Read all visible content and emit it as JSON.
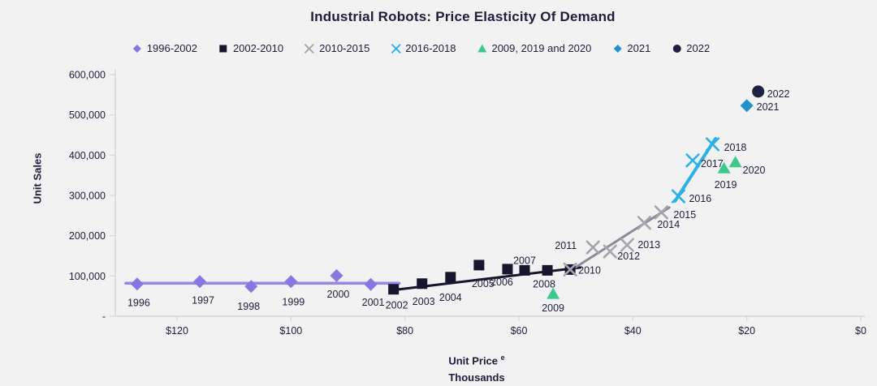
{
  "title": "Industrial Robots: Price Elasticity Of Demand",
  "colors": {
    "background": "#f2f2f2",
    "text": "#1e1e3c",
    "axis_line": "#d6d6db"
  },
  "chart_data": {
    "type": "scatter",
    "title": "Industrial Robots: Price Elasticity Of Demand",
    "xlabel": "Unit Price",
    "xlabel_sup": "e",
    "xlabel_line2": "Thousands",
    "ylabel": "Unit Sales",
    "legend_position": "top-center",
    "grid": false,
    "x_axis": {
      "reversed": true,
      "min": 0,
      "max": 120,
      "tick_step": 20,
      "tick_labels": [
        "$120",
        "$100",
        "$80",
        "$60",
        "$40",
        "$20",
        "$0"
      ]
    },
    "y_axis": {
      "min": 0,
      "max": 600000,
      "tick_step": 100000,
      "tick_labels": [
        "-",
        "100,000",
        "200,000",
        "300,000",
        "400,000",
        "500,000",
        "600,000"
      ]
    },
    "series": [
      {
        "name": "1996-2002",
        "marker": "diamond",
        "color": "#8677e2",
        "points": [
          {
            "year": "1996",
            "price": 127,
            "sales": 80000,
            "label": [
              2,
              27,
              "middle"
            ]
          },
          {
            "year": "1997",
            "price": 116,
            "sales": 86000,
            "label": [
              4,
              27,
              "middle"
            ]
          },
          {
            "year": "1998",
            "price": 107,
            "sales": 74000,
            "label": [
              -3,
              29,
              "middle"
            ]
          },
          {
            "year": "1999",
            "price": 100,
            "sales": 86000,
            "label": [
              3,
              29,
              "middle"
            ]
          },
          {
            "year": "2000",
            "price": 92,
            "sales": 101000,
            "label": [
              2,
              27,
              "middle"
            ]
          },
          {
            "year": "2001",
            "price": 86,
            "sales": 79000,
            "label": [
              3,
              26,
              "middle"
            ]
          }
        ],
        "trend_line": {
          "color": "#9488e8",
          "width": 3.5,
          "from": [
            129,
            82000
          ],
          "to": [
            81,
            82000
          ]
        }
      },
      {
        "name": "2002-2010",
        "marker": "square",
        "color": "#16162f",
        "points": [
          {
            "year": "2002",
            "price": 82,
            "sales": 67000,
            "label": [
              4,
              24,
              "middle"
            ]
          },
          {
            "year": "2003",
            "price": 77,
            "sales": 81000,
            "label": [
              2,
              26,
              "middle"
            ]
          },
          {
            "year": "2004",
            "price": 72,
            "sales": 97000,
            "label": [
              0,
              29,
              "middle"
            ]
          },
          {
            "year": "2005",
            "price": 67,
            "sales": 127000,
            "label": [
              5,
              27,
              "middle"
            ]
          },
          {
            "year": "2006",
            "price": 62,
            "sales": 117000,
            "label": [
              -7,
              20,
              "middle"
            ]
          },
          {
            "year": "2007",
            "price": 59,
            "sales": 114000,
            "label": [
              0,
              -8,
              "middle"
            ]
          },
          {
            "year": "2008",
            "price": 55,
            "sales": 114000,
            "label": [
              -4,
              21,
              "middle"
            ]
          },
          {
            "year": "2010",
            "price": 51,
            "sales": 116000,
            "label": [
              10,
              5,
              "start"
            ]
          }
        ],
        "trend_line": {
          "color": "#16162f",
          "width": 3,
          "from": [
            82.7,
            64000
          ],
          "to": [
            49.2,
            121000
          ]
        }
      },
      {
        "name": "2010-2015",
        "marker": "x",
        "color": "#a5a5af",
        "points": [
          {
            "year": "2010",
            "price": 51,
            "sales": 116000,
            "label": null
          },
          {
            "year": "2011",
            "price": 47,
            "sales": 171000,
            "label": [
              -20,
              2,
              "end"
            ]
          },
          {
            "year": "2012",
            "price": 44,
            "sales": 161000,
            "label": [
              9,
              10,
              "start"
            ]
          },
          {
            "year": "2013",
            "price": 41,
            "sales": 177000,
            "label": [
              13,
              4,
              "start"
            ]
          },
          {
            "year": "2014",
            "price": 38,
            "sales": 232000,
            "label": [
              16,
              6,
              "start"
            ]
          },
          {
            "year": "2015",
            "price": 35,
            "sales": 258000,
            "label": [
              15,
              7,
              "start"
            ]
          }
        ],
        "trend_line": {
          "color": "#8c8c99",
          "width": 3,
          "from": [
            51,
            113000
          ],
          "to": [
            33.6,
            270000
          ]
        }
      },
      {
        "name": "2016-2018",
        "marker": "x",
        "color": "#2ab1e8",
        "points": [
          {
            "year": "2016",
            "price": 32,
            "sales": 298000,
            "label": [
              13,
              7,
              "start"
            ]
          },
          {
            "year": "2017",
            "price": 29.5,
            "sales": 387000,
            "label": [
              10,
              8,
              "start"
            ]
          },
          {
            "year": "2018",
            "price": 26,
            "sales": 427000,
            "label": [
              14,
              8,
              "start"
            ]
          }
        ],
        "trend_line": {
          "color": "#2ab1e8",
          "width": 4,
          "from": [
            32.6,
            286000
          ],
          "to": [
            25.5,
            441000
          ]
        }
      },
      {
        "name": "2009, 2019 and 2020",
        "marker": "triangle",
        "color": "#3ec98c",
        "points": [
          {
            "year": "2009",
            "price": 54,
            "sales": 56000,
            "label": [
              0,
              22,
              "middle"
            ]
          },
          {
            "year": "2019",
            "price": 24,
            "sales": 368000,
            "label": [
              2,
              25,
              "middle"
            ]
          },
          {
            "year": "2020",
            "price": 22,
            "sales": 383000,
            "label": [
              9,
              14,
              "start"
            ]
          }
        ]
      },
      {
        "name": "2021",
        "marker": "diamond",
        "color": "#2191c9",
        "points": [
          {
            "year": "2021",
            "price": 20,
            "sales": 523000,
            "label": [
              12,
              6,
              "start"
            ]
          }
        ]
      },
      {
        "name": "2022",
        "marker": "circle",
        "color": "#20203f",
        "points": [
          {
            "year": "2022",
            "price": 18,
            "sales": 558000,
            "label": [
              11,
              7,
              "start"
            ]
          }
        ]
      }
    ]
  }
}
